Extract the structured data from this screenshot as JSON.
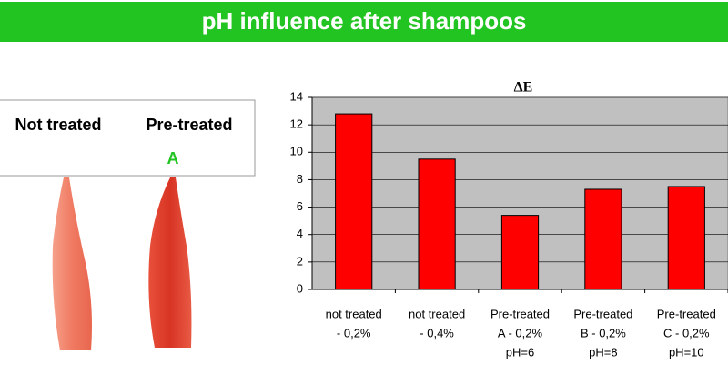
{
  "header": {
    "title": "pH influence after shampoos"
  },
  "panel": {
    "labels": [
      "Not treated",
      "Pre-treated"
    ],
    "sample_mark": "A"
  },
  "chart_data": {
    "type": "bar",
    "title": "ΔE",
    "categories": [
      [
        "not treated",
        "- 0,2%"
      ],
      [
        "not treated",
        "- 0,4%"
      ],
      [
        "Pre-treated",
        "A - 0,2%",
        "pH=6"
      ],
      [
        "Pre-treated",
        "B - 0,2%",
        "pH=8"
      ],
      [
        "Pre-treated",
        "C - 0,2%",
        "pH=10"
      ]
    ],
    "values": [
      12.8,
      9.5,
      5.4,
      7.3,
      7.5
    ],
    "color": "#ff0000",
    "ylim": [
      0,
      14
    ],
    "yticks": [
      0,
      2,
      4,
      6,
      8,
      10,
      12,
      14
    ],
    "grid": true
  }
}
